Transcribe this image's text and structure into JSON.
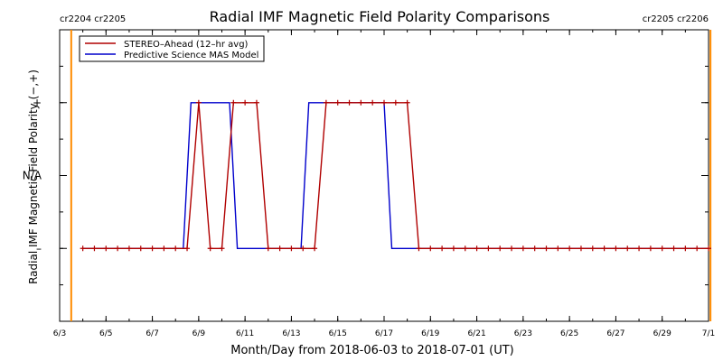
{
  "chart_data": {
    "type": "line",
    "title": "Radial IMF Magnetic Field Polarity Comparisons",
    "xlabel": "Month/Day from 2018-06-03 to 2018-07-01 (UT)",
    "ylabel": "Radial IMF Magnetic Field Polarity (−,+)",
    "xlim": [
      "2018-06-03",
      "2018-07-01"
    ],
    "x_ticks": [
      {
        "date": "2018-06-03",
        "label": "6/3"
      },
      {
        "date": "2018-06-05",
        "label": "6/5"
      },
      {
        "date": "2018-06-07",
        "label": "6/7"
      },
      {
        "date": "2018-06-09",
        "label": "6/9"
      },
      {
        "date": "2018-06-11",
        "label": "6/11"
      },
      {
        "date": "2018-06-13",
        "label": "6/13"
      },
      {
        "date": "2018-06-15",
        "label": "6/15"
      },
      {
        "date": "2018-06-17",
        "label": "6/17"
      },
      {
        "date": "2018-06-19",
        "label": "6/19"
      },
      {
        "date": "2018-06-21",
        "label": "6/21"
      },
      {
        "date": "2018-06-23",
        "label": "6/23"
      },
      {
        "date": "2018-06-25",
        "label": "6/25"
      },
      {
        "date": "2018-06-27",
        "label": "6/27"
      },
      {
        "date": "2018-06-29",
        "label": "6/29"
      },
      {
        "date": "2018-07-01",
        "label": "7/1"
      }
    ],
    "y_categories": [
      {
        "value": -1,
        "label": "–"
      },
      {
        "value": 0,
        "label": "N/A"
      },
      {
        "value": 1,
        "label": "+"
      }
    ],
    "ylim": [
      -2,
      2
    ],
    "legend": {
      "position": "top-left"
    },
    "series": [
      {
        "name": "STEREO–Ahead (12–hr avg)",
        "color": "#b00000",
        "marker": "plus",
        "points": [
          [
            "2018-06-04T00:00",
            -1
          ],
          [
            "2018-06-04T12:00",
            -1
          ],
          [
            "2018-06-05T00:00",
            -1
          ],
          [
            "2018-06-05T12:00",
            -1
          ],
          [
            "2018-06-06T00:00",
            -1
          ],
          [
            "2018-06-06T12:00",
            -1
          ],
          [
            "2018-06-07T00:00",
            -1
          ],
          [
            "2018-06-07T12:00",
            -1
          ],
          [
            "2018-06-08T00:00",
            -1
          ],
          [
            "2018-06-08T12:00",
            -1
          ],
          [
            "2018-06-09T00:00",
            1
          ],
          [
            "2018-06-09T12:00",
            -1
          ],
          [
            "2018-06-10T00:00",
            -1
          ],
          [
            "2018-06-10T12:00",
            1
          ],
          [
            "2018-06-11T00:00",
            1
          ],
          [
            "2018-06-11T12:00",
            1
          ],
          [
            "2018-06-12T00:00",
            -1
          ],
          [
            "2018-06-12T12:00",
            -1
          ],
          [
            "2018-06-13T00:00",
            -1
          ],
          [
            "2018-06-13T12:00",
            -1
          ],
          [
            "2018-06-14T00:00",
            -1
          ],
          [
            "2018-06-14T12:00",
            1
          ],
          [
            "2018-06-15T00:00",
            1
          ],
          [
            "2018-06-15T12:00",
            1
          ],
          [
            "2018-06-16T00:00",
            1
          ],
          [
            "2018-06-16T12:00",
            1
          ],
          [
            "2018-06-17T00:00",
            1
          ],
          [
            "2018-06-17T12:00",
            1
          ],
          [
            "2018-06-18T00:00",
            1
          ],
          [
            "2018-06-18T12:00",
            -1
          ],
          [
            "2018-06-19T00:00",
            -1
          ],
          [
            "2018-06-19T12:00",
            -1
          ],
          [
            "2018-06-20T00:00",
            -1
          ],
          [
            "2018-06-20T12:00",
            -1
          ],
          [
            "2018-06-21T00:00",
            -1
          ],
          [
            "2018-06-21T12:00",
            -1
          ],
          [
            "2018-06-22T00:00",
            -1
          ],
          [
            "2018-06-22T12:00",
            -1
          ],
          [
            "2018-06-23T00:00",
            -1
          ],
          [
            "2018-06-23T12:00",
            -1
          ],
          [
            "2018-06-24T00:00",
            -1
          ],
          [
            "2018-06-24T12:00",
            -1
          ],
          [
            "2018-06-25T00:00",
            -1
          ],
          [
            "2018-06-25T12:00",
            -1
          ],
          [
            "2018-06-26T00:00",
            -1
          ],
          [
            "2018-06-26T12:00",
            -1
          ],
          [
            "2018-06-27T00:00",
            -1
          ],
          [
            "2018-06-27T12:00",
            -1
          ],
          [
            "2018-06-28T00:00",
            -1
          ],
          [
            "2018-06-28T12:00",
            -1
          ],
          [
            "2018-06-29T00:00",
            -1
          ],
          [
            "2018-06-29T12:00",
            -1
          ],
          [
            "2018-06-30T00:00",
            -1
          ],
          [
            "2018-06-30T12:00",
            -1
          ],
          [
            "2018-07-01T00:00",
            -1
          ]
        ]
      },
      {
        "name": "Predictive Science MAS Model",
        "color": "#0000cc",
        "marker": "none",
        "points": [
          [
            "2018-06-04T00:00",
            -1
          ],
          [
            "2018-06-08T08:00",
            -1
          ],
          [
            "2018-06-08T16:00",
            1
          ],
          [
            "2018-06-10T08:00",
            1
          ],
          [
            "2018-06-10T16:00",
            -1
          ],
          [
            "2018-06-13T10:00",
            -1
          ],
          [
            "2018-06-13T18:00",
            1
          ],
          [
            "2018-06-17T00:00",
            1
          ],
          [
            "2018-06-17T08:00",
            -1
          ],
          [
            "2018-07-01T00:00",
            -1
          ]
        ]
      }
    ],
    "vertical_markers": [
      {
        "date": "2018-06-03T12:00",
        "label": "",
        "color": "#ff8c00"
      },
      {
        "date": "2018-07-01T02:00",
        "label": "",
        "color": "#ff8c00"
      }
    ],
    "corner_labels": {
      "left": "cr2204 cr2205",
      "right": "cr2205 cr2206",
      "color": "#ff8c00"
    },
    "grid": false
  }
}
